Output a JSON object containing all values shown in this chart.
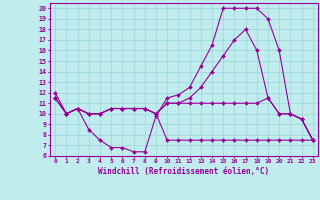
{
  "xlabel": "Windchill (Refroidissement éolien,°C)",
  "bg_color": "#c0ecee",
  "grid_color": "#a0d8dc",
  "line_color": "#990099",
  "xlim": [
    -0.5,
    23.5
  ],
  "ylim": [
    6,
    20.5
  ],
  "xticks": [
    0,
    1,
    2,
    3,
    4,
    5,
    6,
    7,
    8,
    9,
    10,
    11,
    12,
    13,
    14,
    15,
    16,
    17,
    18,
    19,
    20,
    21,
    22,
    23
  ],
  "yticks": [
    6,
    7,
    8,
    9,
    10,
    11,
    12,
    13,
    14,
    15,
    16,
    17,
    18,
    19,
    20
  ],
  "line1_x": [
    0,
    1,
    2,
    3,
    4,
    5,
    6,
    7,
    8,
    9,
    10,
    11,
    12,
    13,
    14,
    15,
    16,
    17,
    18,
    19,
    20,
    21,
    22,
    23
  ],
  "line1_y": [
    12,
    10,
    10.5,
    8.5,
    7.5,
    6.8,
    6.8,
    6.4,
    6.4,
    9.8,
    11.5,
    11.8,
    12.5,
    14.5,
    16.5,
    20,
    20,
    20,
    20,
    19,
    16,
    10,
    9.5,
    7.5
  ],
  "line2_x": [
    0,
    1,
    2,
    3,
    4,
    5,
    6,
    7,
    8,
    9,
    10,
    11,
    12,
    13,
    14,
    15,
    16,
    17,
    18,
    19,
    20,
    21,
    22,
    23
  ],
  "line2_y": [
    11.5,
    10,
    10.5,
    10,
    10,
    10.5,
    10.5,
    10.5,
    10.5,
    10,
    11,
    11,
    11.5,
    12.5,
    14,
    15.5,
    17,
    18,
    16,
    11.5,
    10,
    10,
    9.5,
    7.5
  ],
  "line3_x": [
    0,
    1,
    2,
    3,
    4,
    5,
    6,
    7,
    8,
    9,
    10,
    11,
    12,
    13,
    14,
    15,
    16,
    17,
    18,
    19,
    20,
    21,
    22,
    23
  ],
  "line3_y": [
    11.5,
    10,
    10.5,
    10,
    10,
    10.5,
    10.5,
    10.5,
    10.5,
    10,
    11,
    11,
    11,
    11,
    11,
    11,
    11,
    11,
    11,
    11.5,
    10,
    10,
    9.5,
    7.5
  ],
  "line4_x": [
    0,
    1,
    2,
    3,
    4,
    5,
    6,
    7,
    8,
    9,
    10,
    11,
    12,
    13,
    14,
    15,
    16,
    17,
    18,
    19,
    20,
    21,
    22,
    23
  ],
  "line4_y": [
    11.5,
    10,
    10.5,
    10,
    10,
    10.5,
    10.5,
    10.5,
    10.5,
    10,
    7.5,
    7.5,
    7.5,
    7.5,
    7.5,
    7.5,
    7.5,
    7.5,
    7.5,
    7.5,
    7.5,
    7.5,
    7.5,
    7.5
  ]
}
